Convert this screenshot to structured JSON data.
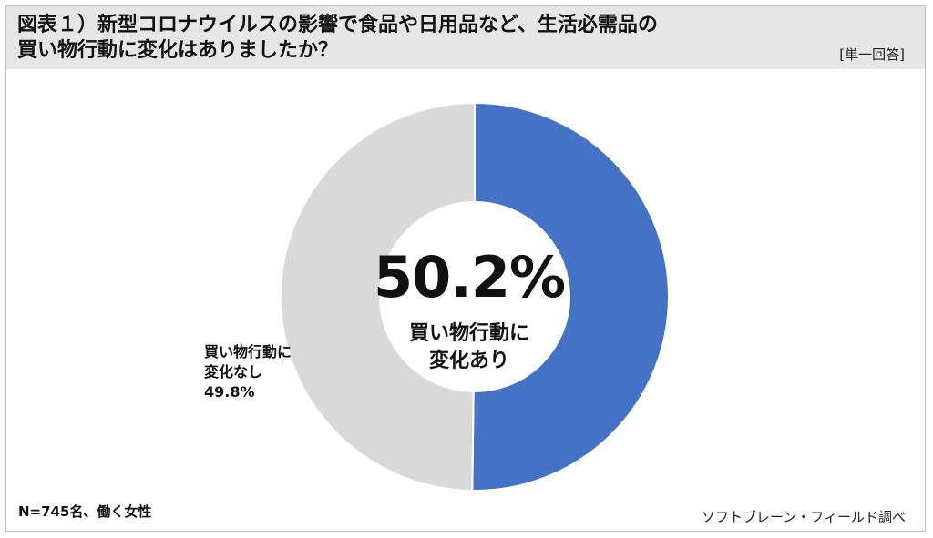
{
  "title": {
    "line1": "図表１）新型コロナウイルスの影響で食品や日用品など、生活必需品の",
    "line2": "買い物行動に変化はありましたか？"
  },
  "question_type": "[単一回答]",
  "chart_data": {
    "type": "pie",
    "variant": "donut",
    "slices": [
      {
        "label_lines": [
          "買い物行動に",
          "変化あり"
        ],
        "value": 50.2,
        "value_text": "50.2%",
        "color": "#4472c4"
      },
      {
        "label_lines": [
          "買い物行動に",
          "変化なし"
        ],
        "value": 49.8,
        "value_text": "49.8%",
        "color": "#d9d9d9"
      }
    ]
  },
  "note": "N=745名、働く女性",
  "source": "ソフトブレーン・フィールド調べ"
}
